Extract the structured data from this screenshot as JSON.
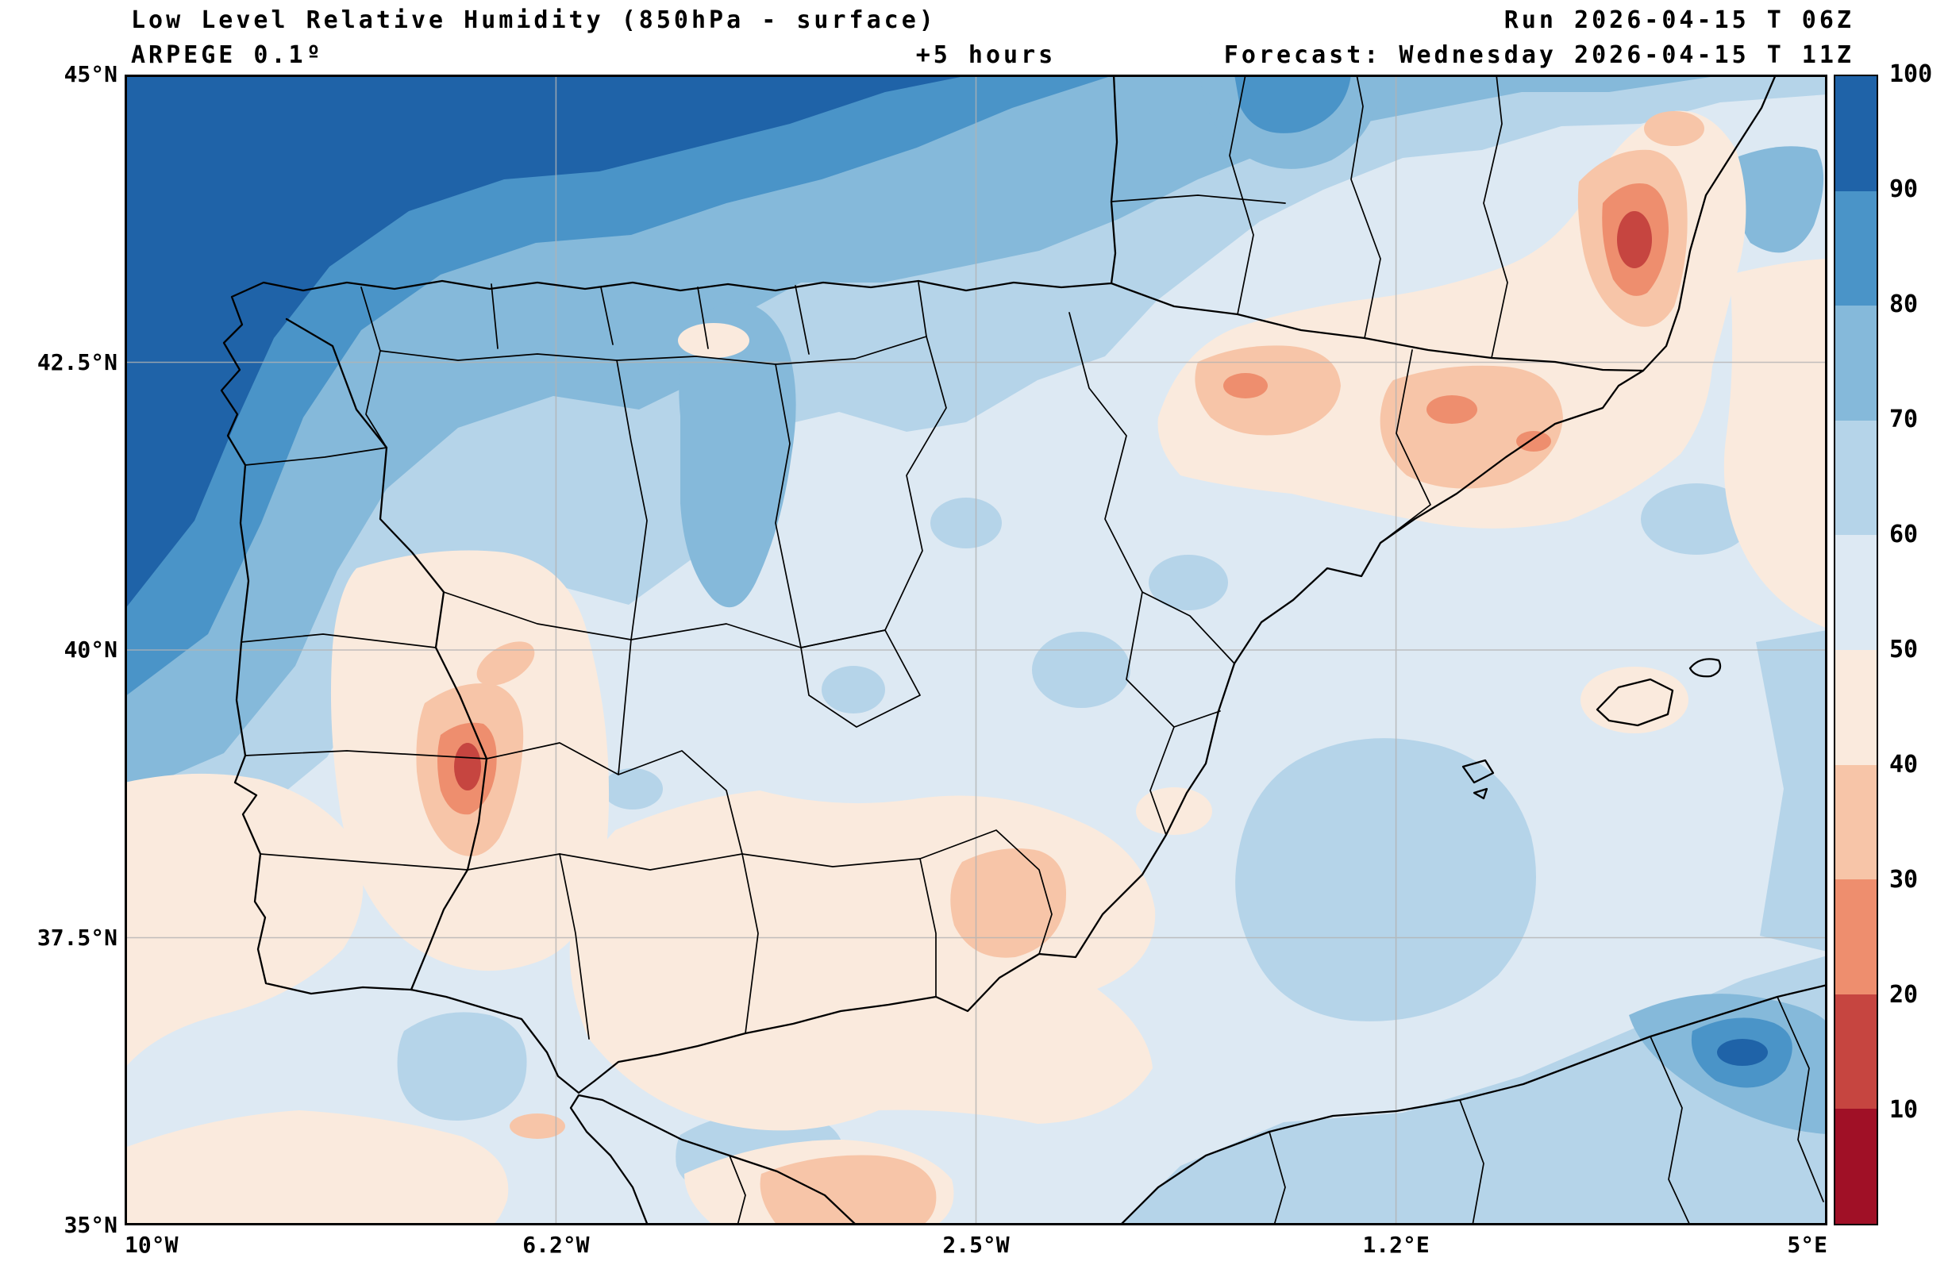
{
  "header": {
    "title": "Low Level Relative Humidity (850hPa - surface)",
    "model": "ARPEGE 0.1º",
    "lead_time": "+5 hours",
    "run": "Run 2026-04-15 T 06Z",
    "forecast": "Forecast: Wednesday 2026-04-15 T 11Z"
  },
  "chart_data": {
    "type": "heatmap",
    "title": "Low Level Relative Humidity (850hPa - surface)",
    "model": "ARPEGE 0.1º",
    "lead_hours": 5,
    "run_time": "2026-04-15 06Z",
    "valid_time": "Wednesday 2026-04-15 11Z",
    "units": "%",
    "region": "Iberian Peninsula and surroundings",
    "lat_range": [
      35,
      45
    ],
    "lon_range": [
      -10,
      5
    ],
    "lat_ticks": [
      "45°N",
      "42.5°N",
      "40°N",
      "37.5°N",
      "35°N"
    ],
    "lon_ticks": [
      "10°W",
      "6.2°W",
      "2.5°W",
      "1.2°E",
      "5°E"
    ],
    "grid": true,
    "colorbar": {
      "position": "right",
      "unit": "%",
      "ticks": [
        100,
        90,
        80,
        70,
        60,
        50,
        40,
        30,
        20,
        10
      ],
      "bins": [
        {
          "range_pct": "90-100",
          "color_key": "b90_100"
        },
        {
          "range_pct": "80-90",
          "color_key": "b80_90"
        },
        {
          "range_pct": "70-80",
          "color_key": "b70_80"
        },
        {
          "range_pct": "60-70",
          "color_key": "b60_70"
        },
        {
          "range_pct": "50-60",
          "color_key": "b50_60"
        },
        {
          "range_pct": "40-50",
          "color_key": "b40_50"
        },
        {
          "range_pct": "30-40",
          "color_key": "b30_40"
        },
        {
          "range_pct": "20-30",
          "color_key": "b20_30"
        },
        {
          "range_pct": "10-20",
          "color_key": "b10_20"
        },
        {
          "range_pct": "0-10",
          "color_key": "b0_10"
        }
      ]
    },
    "palette": {
      "b90_100": "#1f63a8",
      "b80_90": "#4a94c8",
      "b70_80": "#85b9da",
      "b60_70": "#b5d4e9",
      "b50_60": "#dde9f3",
      "b40_50": "#faeadd",
      "b30_40": "#f7c5a8",
      "b20_30": "#ee8e6e",
      "b10_20": "#c64540",
      "b0_10": "#a01026"
    },
    "features": [
      "Very humid air (RH 90-100%) over the Atlantic northwest and a band along the Bay of Biscay into northern Iberia",
      "Humid band (70-90%) across Galicia, the Cantabrian coast and toward southwest France",
      "Dry pockets (RH 10-30%) over the Ebro valley / interior Catalonia with a minimum near the eastern Pyrenees",
      "Dry pocket (RH 10-30%) over Extremadura near the Portugal-Spain border",
      "Mostly 40-60% over central Iberia, Andalusia and the southwest Atlantic",
      "Moist patch (60-70%) over the Mediterranean east of Valencia",
      "Humid patch (70-100%) over northern Morocco / Alboran area in the bottom right"
    ]
  }
}
